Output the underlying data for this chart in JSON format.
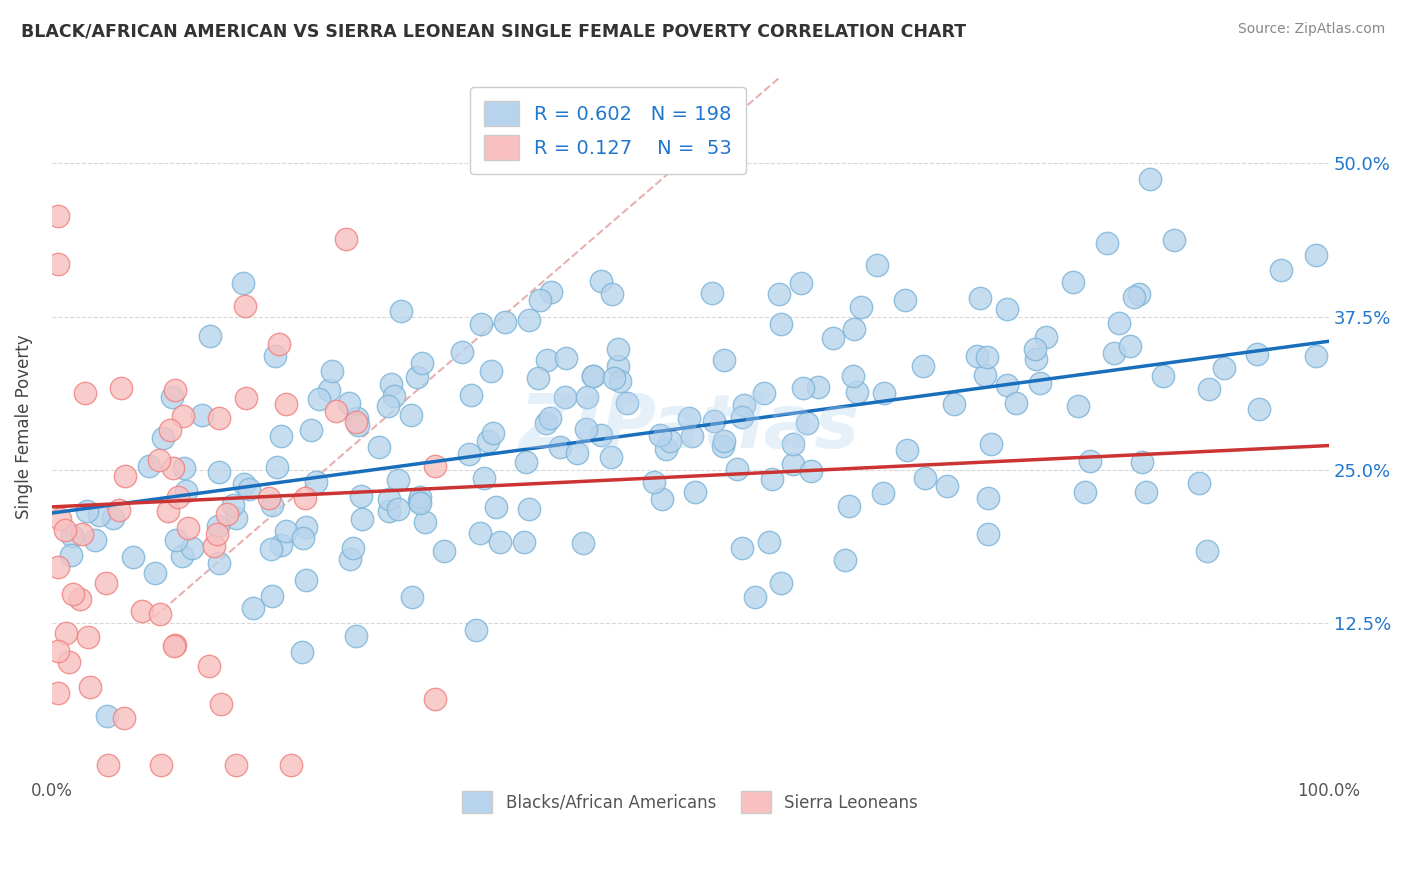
{
  "title": "BLACK/AFRICAN AMERICAN VS SIERRA LEONEAN SINGLE FEMALE POVERTY CORRELATION CHART",
  "source": "Source: ZipAtlas.com",
  "ylabel": "Single Female Poverty",
  "xlim": [
    0,
    1.0
  ],
  "ylim": [
    0,
    0.57
  ],
  "y_tick_values": [
    0.125,
    0.25,
    0.375,
    0.5
  ],
  "right_y_tick_labels": [
    "12.5%",
    "25.0%",
    "37.5%",
    "50.0%"
  ],
  "blue_color": "#7ab4d8",
  "blue_fill": "#b8d4ec",
  "pink_color": "#f08080",
  "pink_fill": "#f8c0c0",
  "blue_line_color": "#1a6fbd",
  "pink_line_color": "#cc3333",
  "dashed_line_color": "#e8b0b0",
  "watermark": "ZIPatlas",
  "legend_R_blue": "0.602",
  "legend_N_blue": "198",
  "legend_R_pink": "0.127",
  "legend_N_pink": "53",
  "legend_color": "#2277cc",
  "grid_color": "#d8d8d8",
  "title_color": "#333333",
  "background_color": "#ffffff",
  "blue_scatter_seed": 123,
  "pink_scatter_seed": 456
}
